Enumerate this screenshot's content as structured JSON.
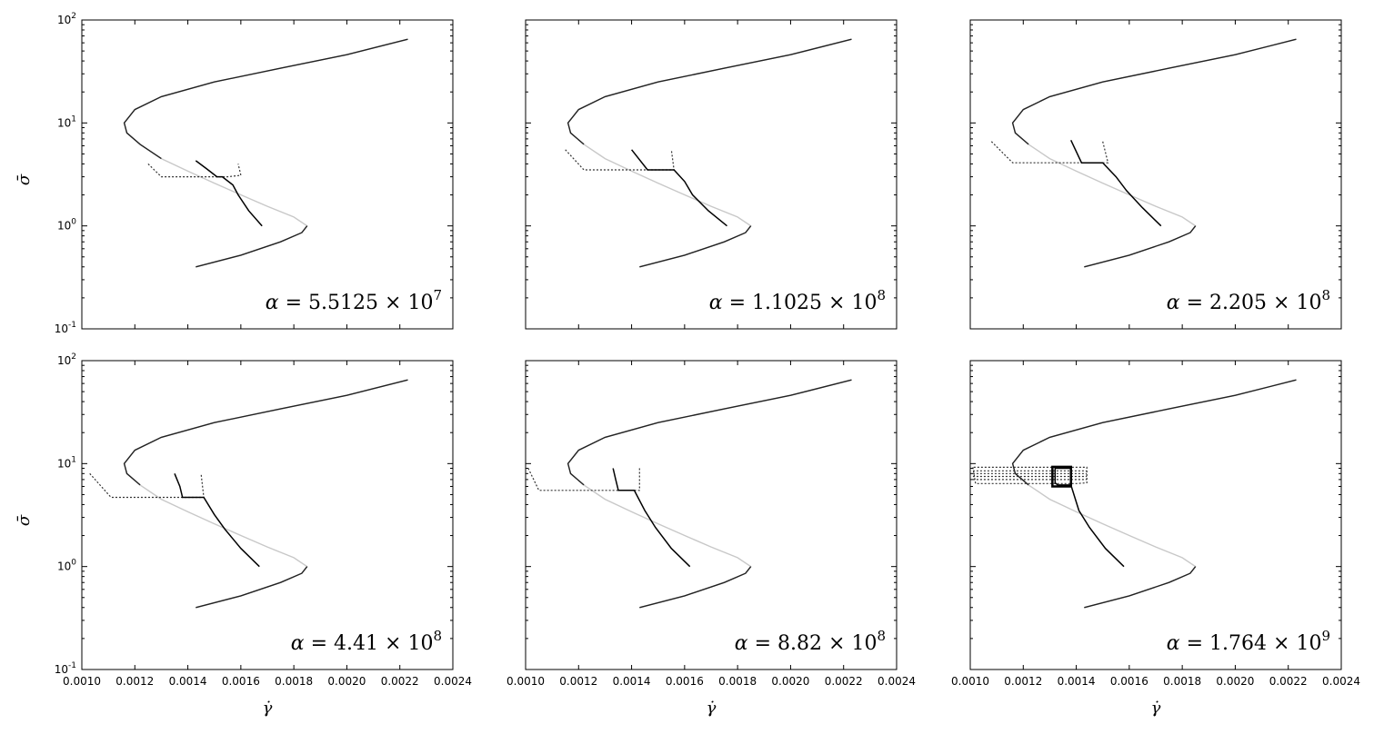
{
  "chart_data": {
    "type": "line",
    "layout": "2x3 grid of panels sharing axes",
    "x_axis": {
      "label": "γ̇",
      "range": [
        0.001,
        0.0024
      ],
      "ticks": [
        "0.0010",
        "0.0012",
        "0.0014",
        "0.0016",
        "0.0018",
        "0.0020",
        "0.0022",
        "0.0024"
      ],
      "shown_on": "bottom row"
    },
    "y_axis": {
      "label": "σ̄",
      "scale": "log",
      "range": [
        0.1,
        100
      ],
      "ticks": [
        {
          "base": "10",
          "exp": "-1",
          "value": 0.1
        },
        {
          "base": "10",
          "exp": "0",
          "value": 1
        },
        {
          "base": "10",
          "exp": "1",
          "value": 10
        },
        {
          "base": "10",
          "exp": "2",
          "value": 100
        }
      ],
      "shown_on": "left column"
    },
    "flow_curve": {
      "description": "S-shaped constitutive curve",
      "stable_color": "#222222",
      "unstable_color": "#c8c8c8",
      "points": [
        [
          0.00143,
          0.4
        ],
        [
          0.0016,
          0.52
        ],
        [
          0.00175,
          0.7
        ],
        [
          0.00183,
          0.86
        ],
        [
          0.00185,
          1.0
        ],
        [
          0.0018,
          1.22
        ],
        [
          0.0017,
          1.55
        ],
        [
          0.0016,
          2.0
        ],
        [
          0.0015,
          2.6
        ],
        [
          0.0014,
          3.4
        ],
        [
          0.0013,
          4.5
        ],
        [
          0.00122,
          6.2
        ],
        [
          0.00117,
          8.0
        ],
        [
          0.00116,
          10.0
        ],
        [
          0.0012,
          13.5
        ],
        [
          0.0013,
          18.0
        ],
        [
          0.0015,
          25.0
        ],
        [
          0.00175,
          34.0
        ],
        [
          0.002,
          46.0
        ],
        [
          0.00223,
          65.0
        ]
      ]
    },
    "panels": [
      {
        "alpha_mantissa": "5.5125",
        "alpha_exp": "7",
        "row": 0,
        "col": 0,
        "stable_lower_end": 0.00185,
        "stable_upper_start": 0.00129,
        "solid_path": [
          [
            0.00168,
            1.0
          ],
          [
            0.00163,
            1.4
          ],
          [
            0.00159,
            2.0
          ],
          [
            0.00157,
            2.5
          ],
          [
            0.00153,
            3.0
          ],
          [
            0.00151,
            3.0
          ],
          [
            0.00147,
            3.6
          ],
          [
            0.00143,
            4.3
          ]
        ],
        "dotted_path": [
          [
            0.00125,
            4.0
          ],
          [
            0.0013,
            3.0
          ],
          [
            0.00149,
            3.0
          ],
          [
            0.00155,
            3.0
          ],
          [
            0.0016,
            3.1
          ],
          [
            0.00159,
            4.0
          ]
        ]
      },
      {
        "alpha_mantissa": "1.1025",
        "alpha_exp": "8",
        "row": 0,
        "col": 1,
        "stable_lower_end": 0.00184,
        "stable_upper_start": 0.00126,
        "solid_path": [
          [
            0.00176,
            1.0
          ],
          [
            0.00169,
            1.4
          ],
          [
            0.00163,
            2.0
          ],
          [
            0.0016,
            2.7
          ],
          [
            0.00156,
            3.5
          ],
          [
            0.00154,
            3.5
          ],
          [
            0.00146,
            3.5
          ],
          [
            0.0014,
            5.5
          ]
        ],
        "dotted_path": [
          [
            0.00115,
            5.5
          ],
          [
            0.00122,
            3.5
          ],
          [
            0.00145,
            3.5
          ],
          [
            0.00152,
            3.5
          ],
          [
            0.00156,
            3.5
          ],
          [
            0.00155,
            5.5
          ]
        ]
      },
      {
        "alpha_mantissa": "2.205",
        "alpha_exp": "8",
        "row": 0,
        "col": 2,
        "stable_lower_end": 0.00184,
        "stable_upper_start": 0.00125,
        "solid_path": [
          [
            0.00172,
            1.0
          ],
          [
            0.00165,
            1.5
          ],
          [
            0.00159,
            2.2
          ],
          [
            0.00155,
            3.0
          ],
          [
            0.0015,
            4.1
          ],
          [
            0.00147,
            4.1
          ],
          [
            0.00142,
            4.1
          ],
          [
            0.00138,
            6.8
          ]
        ],
        "dotted_path": [
          [
            0.00108,
            6.6
          ],
          [
            0.00116,
            4.1
          ],
          [
            0.0014,
            4.1
          ],
          [
            0.00148,
            4.1
          ],
          [
            0.00152,
            4.1
          ],
          [
            0.0015,
            6.6
          ]
        ]
      },
      {
        "alpha_mantissa": "4.41",
        "alpha_exp": "8",
        "row": 1,
        "col": 0,
        "stable_lower_end": 0.00184,
        "stable_upper_start": 0.00122,
        "solid_path": [
          [
            0.00167,
            1.0
          ],
          [
            0.0016,
            1.5
          ],
          [
            0.00154,
            2.3
          ],
          [
            0.0015,
            3.2
          ],
          [
            0.00146,
            4.7
          ],
          [
            0.00142,
            4.7
          ],
          [
            0.00138,
            4.7
          ],
          [
            0.00137,
            6.0
          ],
          [
            0.00135,
            8.0
          ]
        ],
        "dotted_path": [
          [
            0.00103,
            8.0
          ],
          [
            0.00111,
            4.7
          ],
          [
            0.00136,
            4.7
          ],
          [
            0.00143,
            4.7
          ],
          [
            0.00146,
            4.7
          ],
          [
            0.00145,
            8.0
          ]
        ]
      },
      {
        "alpha_mantissa": "8.82",
        "alpha_exp": "8",
        "row": 1,
        "col": 1,
        "stable_lower_end": 0.00184,
        "stable_upper_start": 0.0012,
        "solid_path": [
          [
            0.00162,
            1.0
          ],
          [
            0.00155,
            1.5
          ],
          [
            0.00149,
            2.4
          ],
          [
            0.00145,
            3.5
          ],
          [
            0.00141,
            5.5
          ],
          [
            0.00137,
            5.5
          ],
          [
            0.00135,
            5.5
          ],
          [
            0.00134,
            7.0
          ],
          [
            0.00133,
            9.0
          ]
        ],
        "dotted_path": [
          [
            0.00101,
            9.0
          ],
          [
            0.00105,
            5.5
          ],
          [
            0.00133,
            5.5
          ],
          [
            0.00141,
            5.5
          ],
          [
            0.00143,
            5.5
          ],
          [
            0.00143,
            9.0
          ]
        ]
      },
      {
        "alpha_mantissa": "1.764",
        "alpha_exp": "9",
        "row": 1,
        "col": 2,
        "stable_lower_end": 0.00184,
        "stable_upper_start": 0.00118,
        "solid_path": [
          [
            0.00158,
            1.0
          ],
          [
            0.00151,
            1.5
          ],
          [
            0.00145,
            2.4
          ],
          [
            0.00141,
            3.5
          ],
          [
            0.00138,
            6.2
          ],
          [
            0.00133,
            6.2
          ],
          [
            0.00132,
            6.5
          ],
          [
            0.00132,
            9.0
          ],
          [
            0.00138,
            9.0
          ]
        ],
        "dotted_path": [
          [
            0.00101,
            9.2
          ],
          [
            0.00102,
            6.4
          ],
          [
            0.0014,
            6.4
          ],
          [
            0.00144,
            6.5
          ],
          [
            0.00144,
            9.2
          ],
          [
            0.00101,
            9.2
          ]
        ],
        "dotted_band": [
          [
            0.00101,
            7.0
          ],
          [
            0.00144,
            7.0
          ],
          [
            0.00144,
            8.5
          ],
          [
            0.00101,
            8.5
          ]
        ]
      }
    ]
  }
}
